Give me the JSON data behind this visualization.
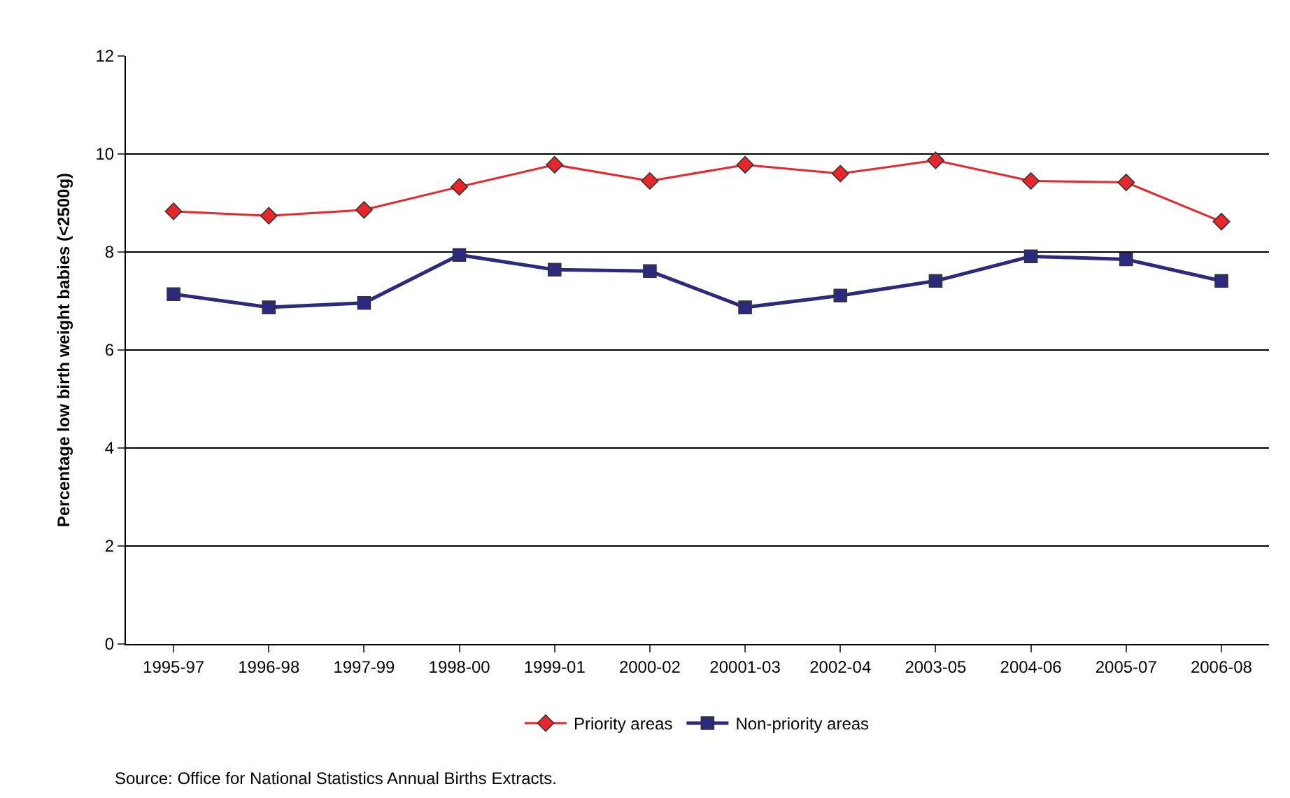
{
  "chart_data": {
    "type": "line",
    "ylabel": "Percentage low birth weight babies (<2500g)",
    "categories": [
      "1995-97",
      "1996-98",
      "1997-99",
      "1998-00",
      "1999-01",
      "2000-02",
      "20001-03",
      "2002-04",
      "2003-05",
      "2004-06",
      "2005-07",
      "2006-08"
    ],
    "series": [
      {
        "name": "Priority areas",
        "color": "#e8262b",
        "marker": "diamond",
        "values": [
          8.83,
          8.74,
          8.86,
          9.33,
          9.78,
          9.45,
          9.78,
          9.6,
          9.87,
          9.45,
          9.42,
          8.62
        ]
      },
      {
        "name": "Non-priority areas",
        "color": "#2b2a7f",
        "marker": "square",
        "values": [
          7.14,
          6.87,
          6.96,
          7.94,
          7.64,
          7.61,
          6.87,
          7.11,
          7.41,
          7.91,
          7.85,
          7.41
        ]
      }
    ],
    "ylim": [
      0,
      12
    ],
    "yticks": [
      0,
      2,
      4,
      6,
      8,
      10,
      12
    ],
    "grid": "y",
    "legend": "bottom",
    "annotations": [
      "Source: Office for National Statistics Annual Births Extracts."
    ]
  }
}
